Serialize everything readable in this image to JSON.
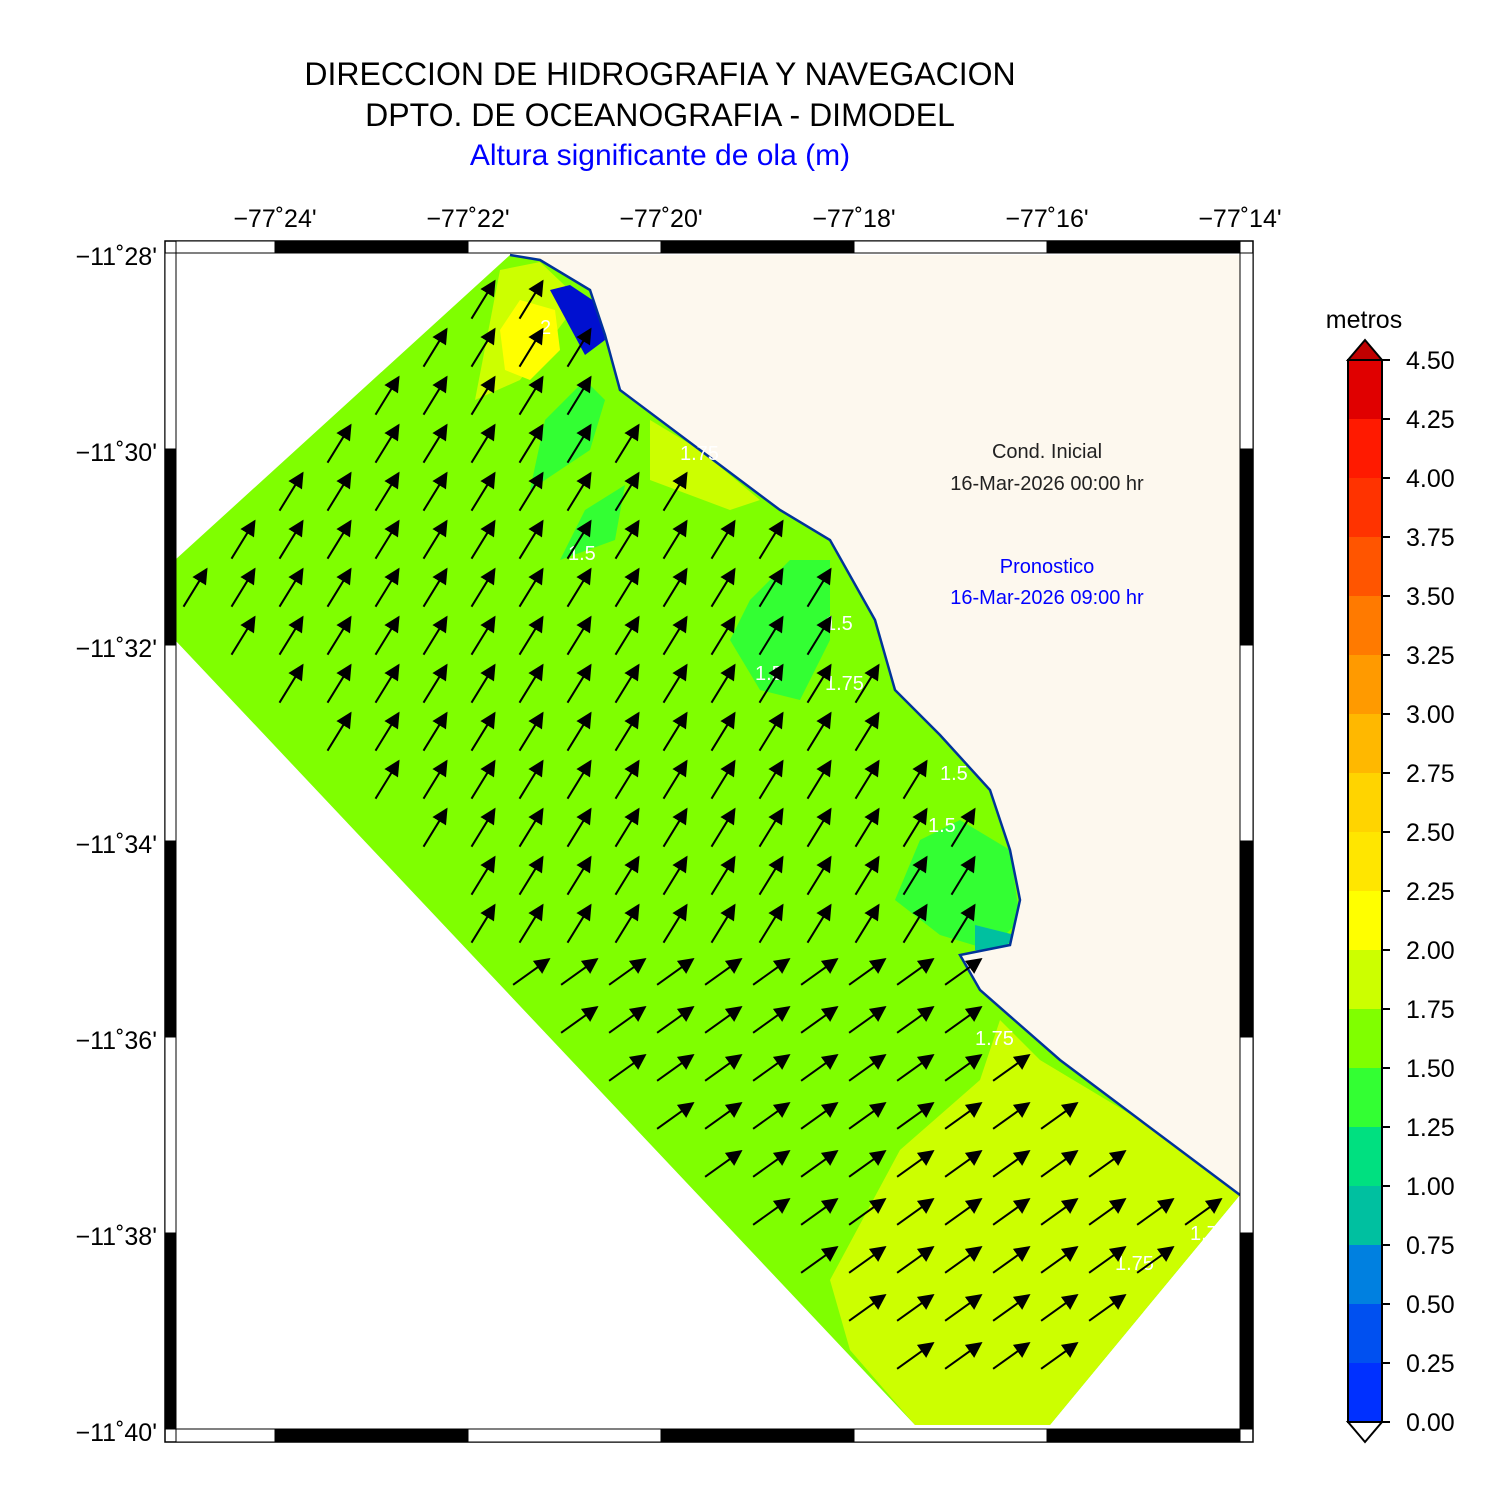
{
  "header": {
    "line1": "DIRECCION DE HIDROGRAFIA Y NAVEGACION",
    "line2": "DPTO. DE OCEANOGRAFIA - DIMODEL",
    "line3": "Altura significante de ola (m)"
  },
  "axes": {
    "lon_ticks": [
      "−77˚24'",
      "−77˚22'",
      "−77˚20'",
      "−77˚18'",
      "−77˚16'",
      "−77˚14'"
    ],
    "lat_ticks": [
      "−11˚28'",
      "−11˚30'",
      "−11˚32'",
      "−11˚34'",
      "−11˚36'",
      "−11˚38'",
      "−11˚40'"
    ]
  },
  "annotations": {
    "initial_label": "Cond. Inicial",
    "initial_time": "16-Mar-2026 00:00 hr",
    "forecast_label": "Pronostico",
    "forecast_time": "16-Mar-2026 09:00 hr"
  },
  "contour_labels": [
    "2",
    "1.5",
    "1.75",
    "1.5",
    "1.5",
    "1.5",
    "1.75",
    "1.5",
    "1.75",
    "1.75",
    "1.75"
  ],
  "colorbar": {
    "title": "metros",
    "ticks": [
      "4.50",
      "4.25",
      "4.00",
      "3.75",
      "3.50",
      "3.25",
      "3.00",
      "2.75",
      "2.50",
      "2.25",
      "2.00",
      "1.75",
      "1.50",
      "1.25",
      "1.00",
      "0.75",
      "0.50",
      "0.25",
      "0.00"
    ],
    "colors": [
      "#c00000",
      "#e00000",
      "#ff1a00",
      "#ff3300",
      "#ff5500",
      "#ff7a00",
      "#ff9a00",
      "#ffb800",
      "#ffd400",
      "#ffe600",
      "#ffff00",
      "#ccff00",
      "#80ff00",
      "#33ff33",
      "#00e080",
      "#00c0a0",
      "#0080e0",
      "#0050f0",
      "#0030ff",
      "#0010d0"
    ]
  },
  "colors": {
    "land": "#fdf8ee",
    "sea_base": "#7fff00",
    "sea_high": "#ccff00",
    "sea_low": "#33ff33",
    "sea_peak": "#ffff00",
    "arrow": "#000000"
  },
  "map_extent": {
    "lon_range": [
      "-77˚25'",
      "-77˚14'"
    ],
    "lat_range": [
      "-11˚40'",
      "-11˚28'"
    ]
  }
}
